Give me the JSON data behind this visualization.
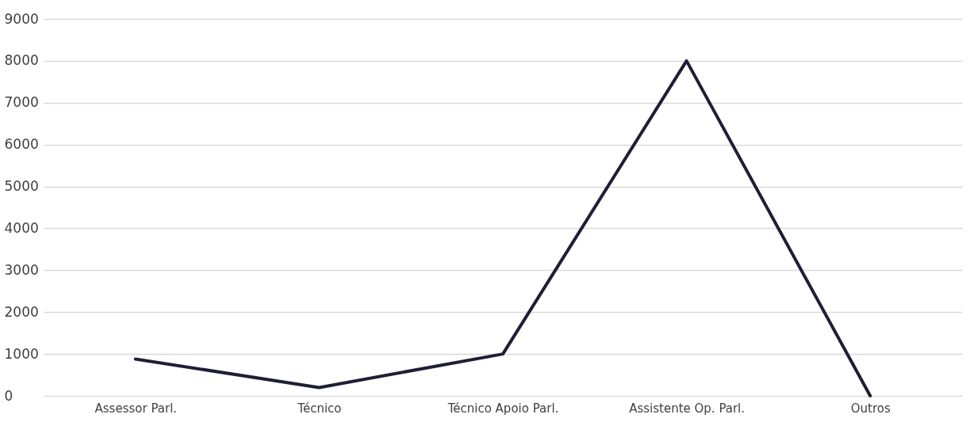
{
  "chart_data": {
    "type": "line",
    "categories": [
      "Assessor Parl.",
      "Técnico",
      "Técnico Apoio Parl.",
      "Assistente Op. Parl.",
      "Outros"
    ],
    "series": [
      {
        "color": "#1e1e36",
        "values": [
          880,
          200,
          1000,
          8000,
          0
        ]
      }
    ],
    "ylim": [
      0,
      9000
    ],
    "yticks": [
      0,
      1000,
      2000,
      3000,
      4000,
      5000,
      6000,
      7000,
      8000,
      9000
    ],
    "grid": "y",
    "legend": false,
    "marker": "none",
    "line_style": "solid"
  }
}
